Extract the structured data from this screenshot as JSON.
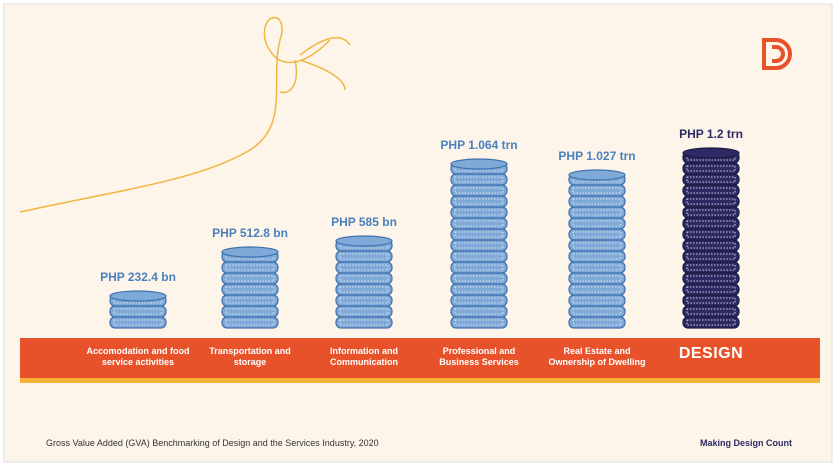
{
  "chart_data": {
    "type": "coin-stack",
    "categories": [
      "Accomodation and food service activities",
      "Transportation and storage",
      "Information and Communication",
      "Professional and Business Services",
      "Real Estate and Ownership of Dwelling",
      "DESIGN"
    ],
    "values": [
      232.4,
      512.8,
      585,
      1064,
      1027,
      1200
    ],
    "value_labels": [
      "PHP 232.4 bn",
      "PHP 512.8 bn",
      "PHP 585 bn",
      "PHP 1.064 trn",
      "PHP 1.027 trn",
      "PHP 1.2 trn"
    ],
    "colors": [
      "#7ea9d8",
      "#7ea9d8",
      "#7ea9d8",
      "#7ea9d8",
      "#7ea9d8",
      "#2d2b63"
    ]
  },
  "footer": {
    "source": "Gross Value Added (GVA) Benchmarking  of Design and the Services Industry, 2020",
    "tagline": "Making Design Count"
  }
}
